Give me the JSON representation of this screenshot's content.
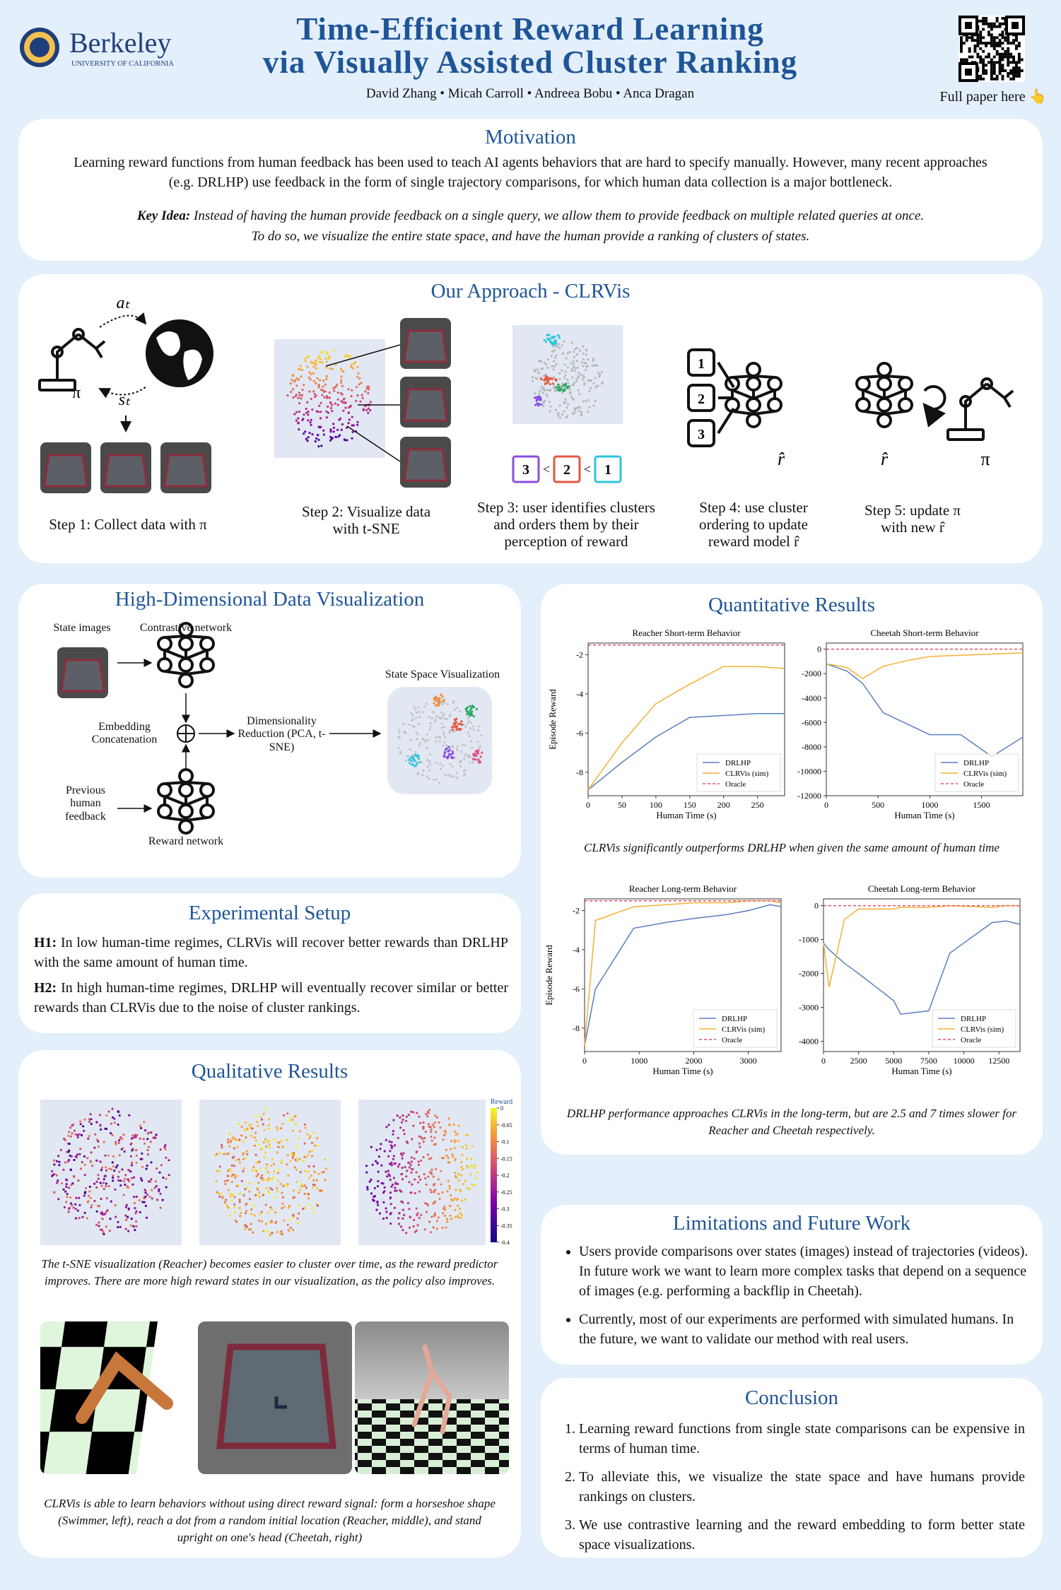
{
  "header": {
    "logo_name": "Berkeley",
    "logo_sub": "UNIVERSITY OF CALIFORNIA",
    "title_line1": "Time-Efficient Reward Learning",
    "title_line2": "via Visually Assisted Cluster Ranking",
    "authors": "David Zhang • Micah Carroll • Andreea Bobu • Anca Dragan",
    "qr_caption": "Full paper here 👆"
  },
  "motivation": {
    "title": "Motivation",
    "body": "Learning reward functions from human feedback has been used to teach AI agents behaviors that are hard to specify manually. However, many recent approaches (e.g. DRLHP) use feedback in the form of single trajectory comparisons, for which human data collection is a major bottleneck.",
    "key_idea_label": "Key Idea:",
    "key_idea": "Instead of having the human provide feedback on a single query, we allow them to provide feedback on multiple related queries at once.",
    "key_idea_2": "To do so, we visualize the entire state space, and have the human provide a ranking of clusters of states."
  },
  "approach": {
    "title": "Our Approach - CLRVis",
    "action": "aₜ",
    "state": "sₜ",
    "policy": "π",
    "reward_hat": "r̂",
    "ranking": [
      3,
      2,
      1
    ],
    "ranking_separator": "<",
    "inputs": [
      1,
      2,
      3
    ],
    "steps": [
      "Step 1: Collect data with π",
      "Step 2: Visualize data with t-SNE",
      "Step 3: user identifies clusters and orders them by their perception of reward",
      "Step 4: use cluster ordering to update reward model r̂",
      "Step 5: update π with new r̂"
    ]
  },
  "visualization": {
    "title": "High-Dimensional Data Visualization",
    "state_images": "State images",
    "contrastive": "Contrastive network",
    "concat": "Embedding Concatenation",
    "reduction": "Dimensionality Reduction (PCA, t-SNE)",
    "state_space": "State Space Visualization",
    "feedback": "Previous human feedback",
    "reward_net": "Reward network"
  },
  "setup": {
    "title": "Experimental Setup",
    "h1_label": "H1:",
    "h1": "In low human-time regimes, CLRVis will recover better rewards than DRLHP with the same amount of human time.",
    "h2_label": "H2:",
    "h2": "In high human-time regimes, DRLHP will eventually recover similar or better rewards than CLRVis due to the noise of cluster rankings."
  },
  "qualitative": {
    "title": "Qualitative Results",
    "colorbar": {
      "title": "Reward",
      "lim": [
        -0.4,
        0
      ],
      "ticks": [
        0,
        -0.05,
        -0.1,
        -0.15,
        -0.2,
        -0.25,
        -0.3,
        -0.35,
        -0.4
      ]
    },
    "caption1": "The t-SNE visualization (Reacher) becomes easier to cluster over time, as the reward predictor improves. There are more high reward states in our visualization, as the policy also improves.",
    "caption2": "CLRVis is able to learn behaviors without using direct reward signal: form a horseshoe shape (Swimmer, left), reach a dot from a random initial location (Reacher, middle), and stand upright on one's head (Cheetah, right)"
  },
  "quantitative": {
    "title": "Quantitative Results",
    "caption1": "CLRVis significantly outperforms DRLHP when given the same amount of human time",
    "caption2": "DRLHP performance approaches CLRVis in the long-term, but are 2.5 and 7 times slower for Reacher and Cheetah respectively.",
    "charts": [
      {
        "type": "line",
        "title": "Reacher Short-term Behavior",
        "xlabel": "Human Time (s)",
        "ylabel": "Episode Reward",
        "legend": "lower right",
        "x": [
          0,
          50,
          100,
          150,
          200,
          250,
          290
        ],
        "xlim": [
          0,
          290
        ],
        "ylim": [
          -9.2,
          -1.4
        ],
        "xticks": [
          0,
          50,
          100,
          150,
          200,
          250
        ],
        "yticks": [
          -8,
          -6,
          -4,
          -2
        ],
        "series": [
          {
            "name": "DRLHP",
            "color": "#5b7fbf",
            "values": [
              -8.9,
              -7.5,
              -6.2,
              -5.2,
              -5.1,
              -5.0,
              -5.0
            ]
          },
          {
            "name": "CLRVis (sim)",
            "color": "#f2b134",
            "values": [
              -8.9,
              -6.5,
              -4.5,
              -3.5,
              -2.6,
              -2.6,
              -2.7
            ]
          },
          {
            "name": "Oracle",
            "color": "#e0506a",
            "dashed": true,
            "values": [
              -1.5,
              -1.5,
              -1.5,
              -1.5,
              -1.5,
              -1.5,
              -1.5
            ]
          }
        ]
      },
      {
        "type": "line",
        "title": "Cheetah Short-term Behavior",
        "xlabel": "Human Time (s)",
        "legend": "lower right",
        "x": [
          0,
          200,
          350,
          550,
          800,
          1000,
          1300,
          1600,
          1900
        ],
        "xlim": [
          0,
          1900
        ],
        "ylim": [
          -12000,
          500
        ],
        "xticks": [
          0,
          500,
          1000,
          1500
        ],
        "yticks": [
          0,
          -2000,
          -4000,
          -6000,
          -8000,
          -10000,
          -12000
        ],
        "series": [
          {
            "name": "DRLHP",
            "color": "#5b7fbf",
            "values": [
              -1200,
              -1800,
              -2800,
              -5200,
              -6200,
              -7000,
              -7000,
              -8800,
              -7200
            ]
          },
          {
            "name": "CLRVis (sim)",
            "color": "#f2b134",
            "values": [
              -1200,
              -1500,
              -2400,
              -1400,
              -900,
              -600,
              -500,
              -400,
              -300
            ]
          },
          {
            "name": "Oracle",
            "color": "#e0506a",
            "dashed": true,
            "values": [
              0,
              0,
              0,
              0,
              0,
              0,
              0,
              0,
              0
            ]
          }
        ]
      },
      {
        "type": "line",
        "title": "Reacher Long-term Behavior",
        "xlabel": "Human Time (s)",
        "ylabel": "Episode Reward",
        "legend": "lower right",
        "x": [
          0,
          200,
          900,
          1500,
          2000,
          2600,
          3000,
          3400,
          3600
        ],
        "xlim": [
          0,
          3600
        ],
        "ylim": [
          -9.2,
          -1.4
        ],
        "xticks": [
          0,
          1000,
          2000,
          3000
        ],
        "yticks": [
          -8,
          -6,
          -4,
          -2
        ],
        "series": [
          {
            "name": "DRLHP",
            "color": "#5b7fbf",
            "values": [
              -8.9,
              -6,
              -2.9,
              -2.6,
              -2.4,
              -2.2,
              -2.0,
              -1.7,
              -1.8
            ]
          },
          {
            "name": "CLRVis (sim)",
            "color": "#f2b134",
            "values": [
              -8.9,
              -2.5,
              -1.8,
              -1.7,
              -1.6,
              -1.6,
              -1.5,
              -1.5,
              -1.6
            ]
          },
          {
            "name": "Oracle",
            "color": "#e0506a",
            "dashed": true,
            "values": [
              -1.5,
              -1.5,
              -1.5,
              -1.5,
              -1.5,
              -1.5,
              -1.5,
              -1.5,
              -1.5
            ]
          }
        ]
      },
      {
        "type": "line",
        "title": "Cheetah Long-term Behavior",
        "xlabel": "Human Time (s)",
        "legend": "lower right",
        "x": [
          0,
          400,
          1500,
          2500,
          5000,
          5500,
          7500,
          9000,
          12000,
          13000,
          14000
        ],
        "xlim": [
          0,
          14000
        ],
        "ylim": [
          -4300,
          200
        ],
        "xticks": [
          0,
          2500,
          5000,
          7500,
          10000,
          12500
        ],
        "yticks": [
          0,
          -1000,
          -2000,
          -3000,
          -4000
        ],
        "series": [
          {
            "name": "DRLHP",
            "color": "#5b7fbf",
            "values": [
              -1100,
              -1300,
              -1700,
              -2000,
              -2800,
              -3200,
              -3100,
              -1400,
              -500,
              -450,
              -550
            ]
          },
          {
            "name": "CLRVis (sim)",
            "color": "#f2b134",
            "values": [
              -1100,
              -2400,
              -400,
              -100,
              -100,
              -50,
              -50,
              0,
              -50,
              0,
              0
            ]
          },
          {
            "name": "Oracle",
            "color": "#e0506a",
            "dashed": true,
            "values": [
              0,
              0,
              0,
              0,
              0,
              0,
              0,
              0,
              0,
              0,
              0
            ]
          }
        ]
      }
    ]
  },
  "limitations": {
    "title": "Limitations and Future Work",
    "items": [
      "Users provide comparisons over states (images) instead of trajectories (videos). In future work we want to learn more complex tasks that depend on a sequence of images (e.g. performing a backflip in Cheetah).",
      "Currently, most of our experiments are performed with simulated humans. In the future, we want to validate our method with real users."
    ]
  },
  "conclusion": {
    "title": "Conclusion",
    "items": [
      "Learning reward functions from single state comparisons can be expensive in terms of human time.",
      "To alleviate this, we visualize the state space and have humans provide rankings on clusters.",
      "We use contrastive learning and the reward embedding to form better state space visualizations."
    ]
  }
}
